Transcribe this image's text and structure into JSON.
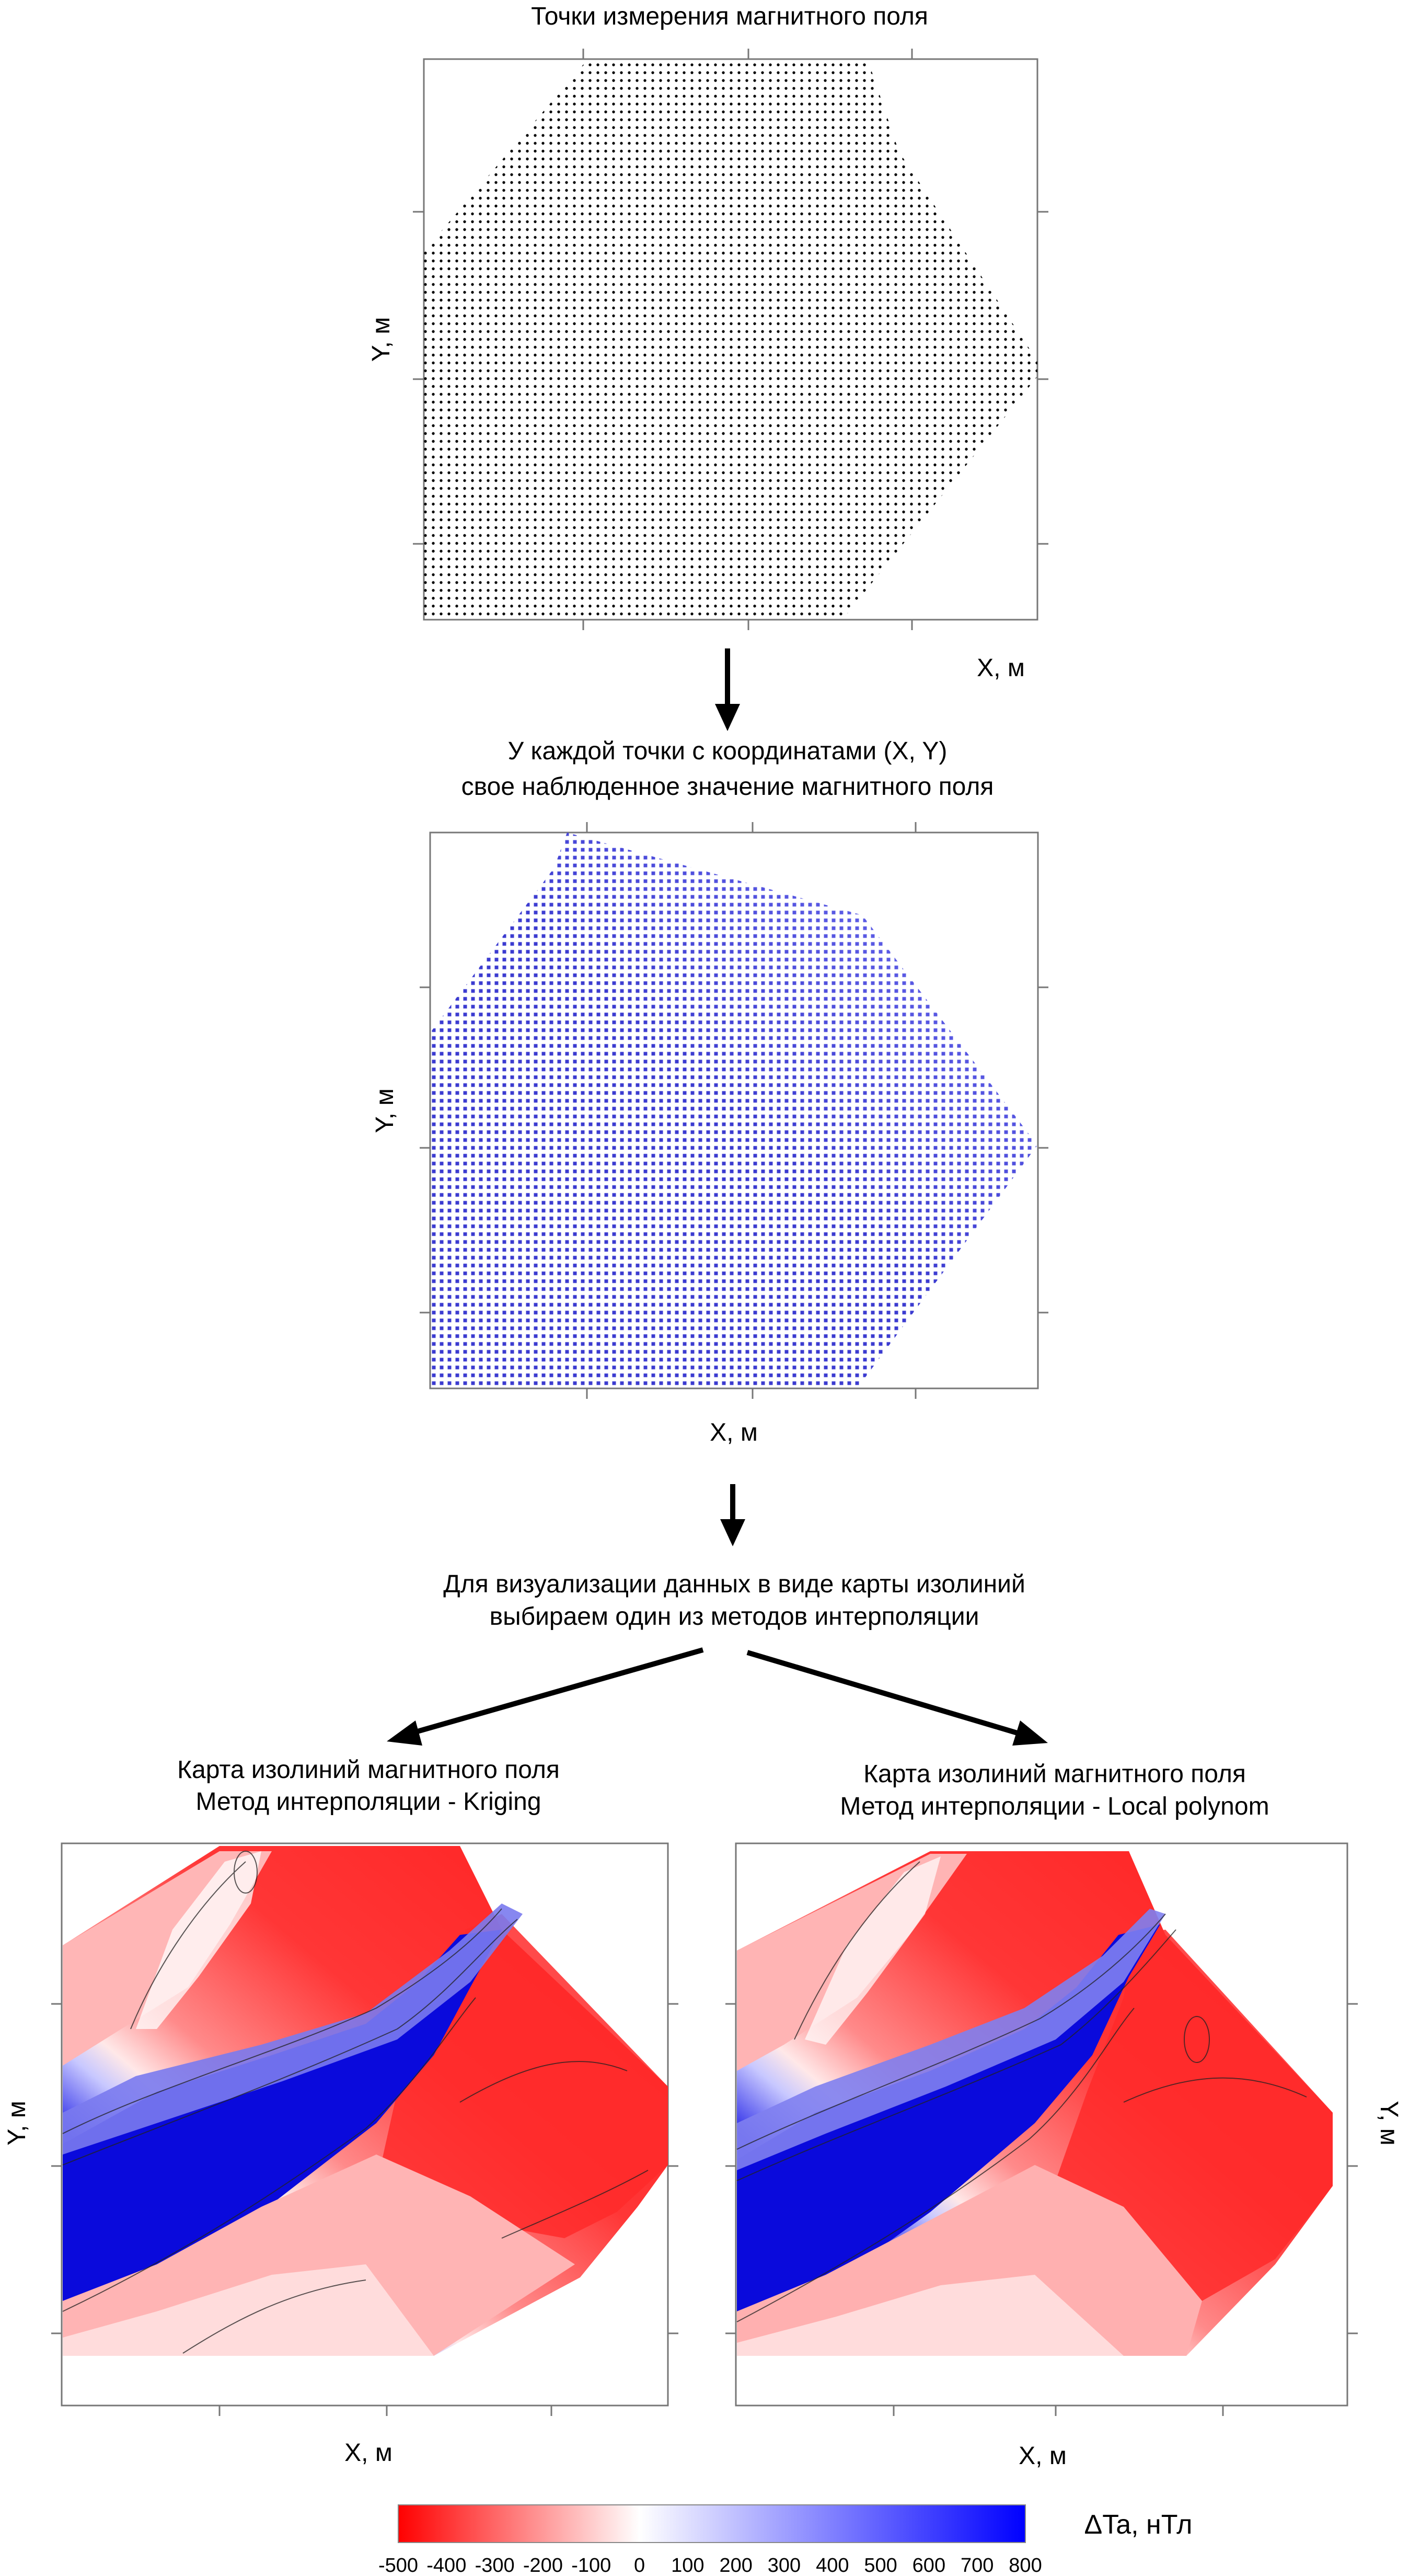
{
  "panel1": {
    "title": "Точки измерения магнитного поля",
    "xlabel": "X, м",
    "ylabel": "Y, м"
  },
  "step1": {
    "line1": "У каждой точки с координатами (X, Y)",
    "line2": "свое наблюденное значение магнитного поля"
  },
  "panel2": {
    "xlabel": "X, м",
    "ylabel": "Y, м"
  },
  "step2": {
    "line1": "Для визуализации данных в виде карты изолиний",
    "line2": "выбираем один из методов интерполяции"
  },
  "map_kriging": {
    "title1": "Карта изолиний магнитного поля",
    "title2": "Метод интерполяции - Kriging",
    "xlabel": "X, м",
    "ylabel": "Y, м"
  },
  "map_localpoly": {
    "title1": "Карта изолиний магнитного поля",
    "title2": "Метод интерполяции - Local polynom",
    "xlabel": "X, м",
    "ylabel": "Y, м"
  },
  "colorbar": {
    "label": "ΔTa, нТл",
    "ticks": [
      "-500",
      "-400",
      "-300",
      "-200",
      "-100",
      "0",
      "100",
      "200",
      "300",
      "400",
      "500",
      "600",
      "700",
      "800"
    ],
    "min": -500,
    "max": 800,
    "colors": {
      "negative": "#ff0000",
      "zero": "#ffffff",
      "positive": "#0000ff"
    }
  }
}
